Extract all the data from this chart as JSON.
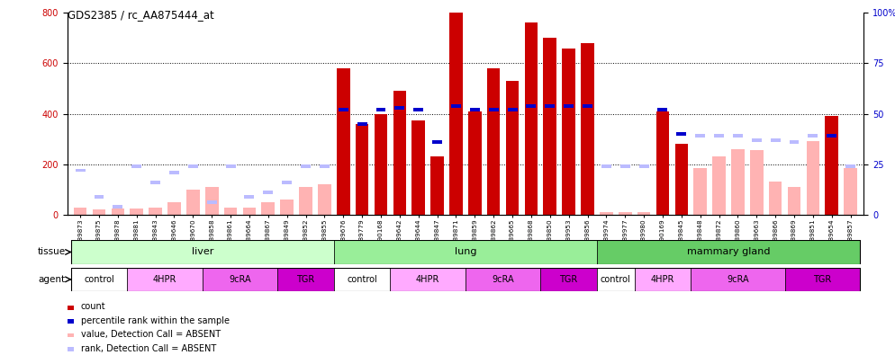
{
  "title": "GDS2385 / rc_AA875444_at",
  "samples": [
    "GSM89873",
    "GSM89875",
    "GSM89878",
    "GSM89881",
    "GSM89843",
    "GSM89646",
    "GSM89670",
    "GSM89858",
    "GSM89861",
    "GSM89664",
    "GSM89867",
    "GSM89849",
    "GSM89852",
    "GSM89855",
    "GSM89676",
    "GSM89779",
    "GSM90168",
    "GSM89642",
    "GSM89644",
    "GSM89847",
    "GSM89871",
    "GSM89859",
    "GSM89862",
    "GSM89665",
    "GSM89868",
    "GSM89850",
    "GSM89953",
    "GSM89856",
    "GSM89974",
    "GSM89977",
    "GSM89980",
    "GSM90169",
    "GSM89845",
    "GSM89848",
    "GSM89872",
    "GSM89860",
    "GSM89663",
    "GSM89866",
    "GSM89869",
    "GSM89851",
    "GSM89654",
    "GSM89857"
  ],
  "count": [
    30,
    20,
    25,
    25,
    30,
    50,
    100,
    110,
    30,
    30,
    50,
    60,
    110,
    120,
    580,
    360,
    400,
    490,
    375,
    230,
    800,
    410,
    580,
    530,
    760,
    700,
    660,
    680,
    10,
    10,
    10,
    410,
    280,
    185,
    230,
    260,
    255,
    130,
    110,
    290,
    390,
    185
  ],
  "percentile_rank": [
    22,
    9,
    4,
    24,
    16,
    21,
    24,
    6,
    24,
    9,
    11,
    16,
    24,
    24,
    52,
    45,
    52,
    53,
    52,
    36,
    54,
    52,
    52,
    52,
    54,
    54,
    54,
    54,
    24,
    24,
    24,
    52,
    40,
    39,
    39,
    39,
    37,
    37,
    36,
    39,
    39,
    24
  ],
  "is_absent_count": [
    true,
    true,
    true,
    true,
    true,
    true,
    true,
    true,
    true,
    true,
    true,
    true,
    true,
    true,
    false,
    false,
    false,
    false,
    false,
    false,
    false,
    false,
    false,
    false,
    false,
    false,
    false,
    false,
    true,
    true,
    true,
    false,
    false,
    true,
    true,
    true,
    true,
    true,
    true,
    true,
    false,
    true
  ],
  "is_absent_percentile": [
    true,
    true,
    true,
    true,
    true,
    true,
    true,
    true,
    true,
    true,
    true,
    true,
    true,
    true,
    false,
    false,
    false,
    false,
    false,
    false,
    false,
    false,
    false,
    false,
    false,
    false,
    false,
    false,
    true,
    true,
    true,
    false,
    false,
    true,
    true,
    true,
    true,
    true,
    true,
    true,
    false,
    true
  ],
  "tissue_groups": [
    {
      "label": "liver",
      "start": 0,
      "end": 13,
      "color": "#ccffcc"
    },
    {
      "label": "lung",
      "start": 14,
      "end": 27,
      "color": "#99ee99"
    },
    {
      "label": "mammary gland",
      "start": 28,
      "end": 41,
      "color": "#66cc66"
    }
  ],
  "agent_groups": [
    {
      "label": "control",
      "start": 0,
      "end": 2,
      "color": "#ffffff"
    },
    {
      "label": "4HPR",
      "start": 3,
      "end": 6,
      "color": "#ffaaff"
    },
    {
      "label": "9cRA",
      "start": 7,
      "end": 10,
      "color": "#ee66ee"
    },
    {
      "label": "TGR",
      "start": 11,
      "end": 13,
      "color": "#cc00cc"
    },
    {
      "label": "control",
      "start": 14,
      "end": 16,
      "color": "#ffffff"
    },
    {
      "label": "4HPR",
      "start": 17,
      "end": 20,
      "color": "#ffaaff"
    },
    {
      "label": "9cRA",
      "start": 21,
      "end": 24,
      "color": "#ee66ee"
    },
    {
      "label": "TGR",
      "start": 25,
      "end": 27,
      "color": "#cc00cc"
    },
    {
      "label": "control",
      "start": 28,
      "end": 29,
      "color": "#ffffff"
    },
    {
      "label": "4HPR",
      "start": 30,
      "end": 32,
      "color": "#ffaaff"
    },
    {
      "label": "9cRA",
      "start": 33,
      "end": 37,
      "color": "#ee66ee"
    },
    {
      "label": "TGR",
      "start": 38,
      "end": 41,
      "color": "#cc00cc"
    }
  ],
  "ylim_left": [
    0,
    800
  ],
  "ylim_right": [
    0,
    100
  ],
  "yticks_left": [
    0,
    200,
    400,
    600,
    800
  ],
  "yticks_right": [
    0,
    25,
    50,
    75,
    100
  ],
  "ytick_right_labels": [
    "0",
    "25",
    "50",
    "75",
    "100%"
  ],
  "color_count": "#cc0000",
  "color_percentile": "#0000cc",
  "color_absent_value": "#ffb3b3",
  "color_absent_rank": "#bbbbff",
  "bar_width": 0.7,
  "legend_items": [
    {
      "color": "#cc0000",
      "label": "count"
    },
    {
      "color": "#0000cc",
      "label": "percentile rank within the sample"
    },
    {
      "color": "#ffb3b3",
      "label": "value, Detection Call = ABSENT"
    },
    {
      "color": "#bbbbff",
      "label": "rank, Detection Call = ABSENT"
    }
  ]
}
